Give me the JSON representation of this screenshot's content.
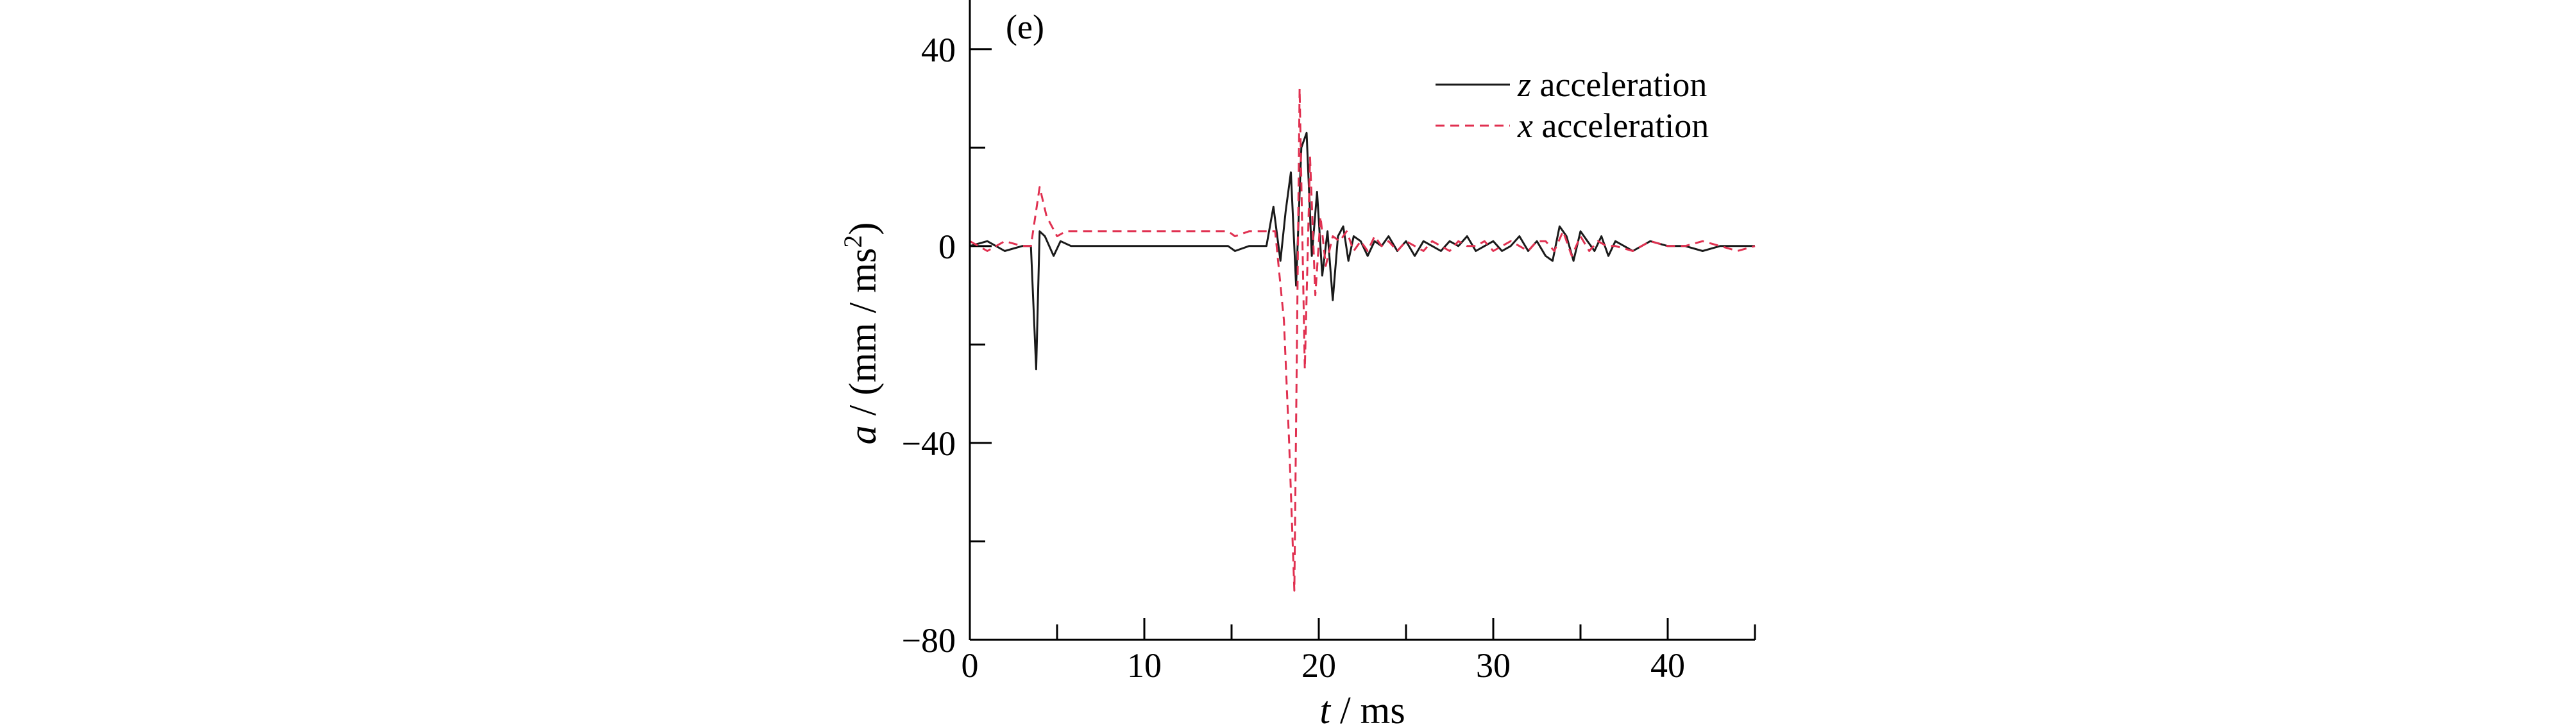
{
  "chart_data": {
    "type": "line",
    "panel_label": "(e)",
    "xlabel": {
      "var": "t",
      "unit": "ms"
    },
    "ylabel": {
      "var": "a",
      "unit": "mm / ms",
      "sup": "2"
    },
    "xlim": [
      0,
      45
    ],
    "ylim": [
      -80,
      50
    ],
    "xticks": [
      0,
      10,
      20,
      30,
      40
    ],
    "yticks": [
      -80,
      -40,
      0,
      40
    ],
    "grid": false,
    "legend_position": "top-right",
    "series": [
      {
        "name": "z acceleration",
        "legend_var": "z",
        "legend_rest": " acceleration",
        "color": "#1a1a1a",
        "dash": "solid",
        "x": [
          0,
          1,
          2,
          3,
          3.5,
          3.8,
          4.0,
          4.3,
          4.8,
          5.2,
          5.8,
          6.5,
          8,
          10,
          12,
          14,
          14.8,
          15.2,
          16,
          17,
          17.4,
          17.8,
          18.1,
          18.4,
          18.7,
          19.0,
          19.3,
          19.6,
          19.9,
          20.2,
          20.5,
          20.8,
          21.1,
          21.4,
          21.7,
          22.0,
          22.4,
          22.8,
          23.2,
          23.6,
          24.0,
          24.5,
          25,
          25.5,
          26,
          26.5,
          27,
          27.5,
          28,
          28.5,
          29,
          29.5,
          30,
          30.5,
          31,
          31.5,
          32,
          32.5,
          33,
          33.4,
          33.8,
          34.2,
          34.6,
          35.0,
          35.4,
          35.8,
          36.2,
          36.6,
          37,
          37.5,
          38,
          39,
          40,
          41,
          42,
          43,
          44,
          45
        ],
        "y": [
          0,
          1,
          -1,
          0,
          0,
          -25,
          3,
          2,
          -2,
          1,
          0,
          0,
          0,
          0,
          0,
          0,
          0,
          -1,
          0,
          0,
          8,
          -3,
          7,
          15,
          -8,
          20,
          23,
          -2,
          11,
          -6,
          3,
          -11,
          2,
          4,
          -3,
          2,
          1,
          -2,
          1,
          0,
          2,
          -1,
          1,
          -2,
          1,
          0,
          -1,
          1,
          0,
          2,
          -1,
          0,
          1,
          -1,
          0,
          2,
          -1,
          1,
          -2,
          -3,
          4,
          2,
          -3,
          3,
          1,
          -1,
          2,
          -2,
          1,
          0,
          -1,
          1,
          0,
          0,
          -1,
          0,
          0,
          0
        ]
      },
      {
        "name": "x acceleration",
        "legend_var": "x",
        "legend_rest": " acceleration",
        "color": "#e03050",
        "dash": "dashed",
        "x": [
          0,
          1,
          2,
          3,
          3.5,
          4.0,
          4.4,
          5,
          5.5,
          6,
          8,
          10,
          12,
          14,
          14.8,
          15.2,
          16,
          17,
          17.5,
          18,
          18.3,
          18.6,
          18.9,
          19.2,
          19.5,
          19.8,
          20.1,
          20.4,
          20.8,
          21.2,
          21.6,
          22,
          22.4,
          22.8,
          23.2,
          23.6,
          24,
          24.5,
          25,
          25.5,
          26,
          26.5,
          27,
          27.5,
          28,
          28.5,
          29,
          29.5,
          30,
          30.5,
          31,
          31.5,
          32,
          32.5,
          33,
          33.5,
          34,
          34.5,
          35,
          35.5,
          36,
          36.5,
          37,
          38,
          39,
          40,
          41,
          42,
          43,
          44,
          45
        ],
        "y": [
          1,
          -1,
          1,
          0,
          0,
          12,
          6,
          2,
          3,
          3,
          3,
          3,
          3,
          3,
          3,
          2,
          3,
          3,
          3,
          -15,
          -40,
          -70,
          32,
          -25,
          18,
          -10,
          6,
          -4,
          2,
          1,
          3,
          -1,
          1,
          -1,
          2,
          0,
          1,
          -1,
          1,
          0,
          -1,
          1,
          0,
          -1,
          1,
          0,
          0,
          1,
          -1,
          0,
          1,
          0,
          -1,
          1,
          1,
          -1,
          3,
          -2,
          2,
          -1,
          1,
          0,
          0,
          -1,
          1,
          0,
          0,
          1,
          0,
          -1,
          0
        ]
      }
    ]
  }
}
